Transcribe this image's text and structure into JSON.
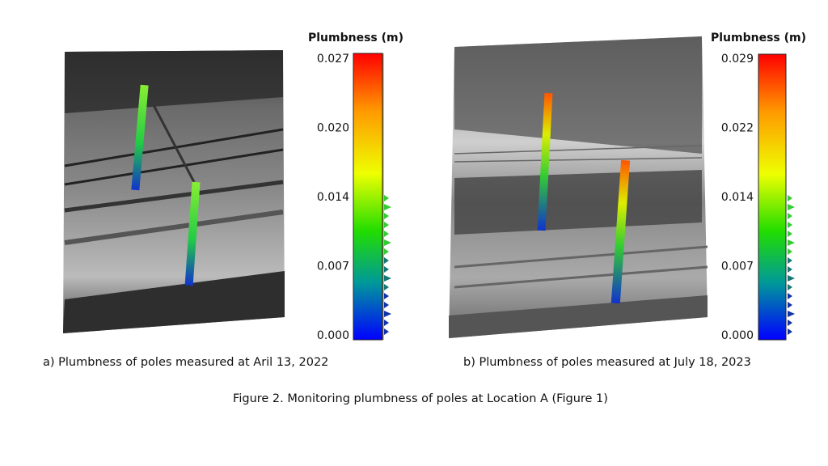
{
  "panels": [
    {
      "colorbar_title": "Plumbness (m)",
      "ticks": [
        "0.027",
        "0.020",
        "0.014",
        "0.007",
        "0.000"
      ],
      "caption": "a) Plumbness of poles measured at Aril 13, 2022"
    },
    {
      "colorbar_title": "Plumbness (m)",
      "ticks": [
        "0.029",
        "0.022",
        "0.014",
        "0.007",
        "0.000"
      ],
      "caption": "b) Plumbness of poles measured at July 18, 2023"
    }
  ],
  "figure_caption": "Figure 2. Monitoring plumbness of poles at Location A (Figure 1)"
}
